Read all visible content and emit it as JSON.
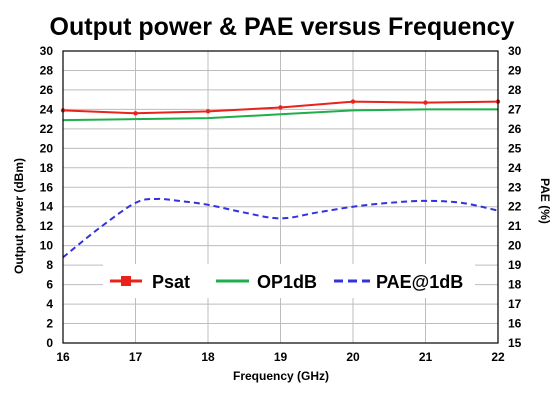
{
  "chart_data": {
    "type": "line",
    "title": "Output power & PAE versus Frequency",
    "xlabel": "Frequency (GHz)",
    "ylabel": "Output power  (dBm)",
    "y2label": "PAE (%)",
    "xlim": [
      16,
      22
    ],
    "ylim": [
      0,
      30
    ],
    "y2lim": [
      15,
      30
    ],
    "x_ticks": [
      16,
      17,
      18,
      19,
      20,
      21,
      22
    ],
    "y_ticks": [
      0,
      2,
      4,
      6,
      8,
      10,
      12,
      14,
      16,
      18,
      20,
      22,
      24,
      26,
      28,
      30
    ],
    "y2_ticks": [
      15,
      16,
      17,
      18,
      19,
      20,
      21,
      22,
      23,
      24,
      25,
      26,
      27,
      28,
      29,
      30
    ],
    "grid": true,
    "legend_position": "lower-center",
    "series": [
      {
        "name": "Psat",
        "axis": "left",
        "color": "#e8231c",
        "style": "solid-marker",
        "x": [
          16,
          17,
          18,
          19,
          20,
          21,
          22
        ],
        "y": [
          23.9,
          23.6,
          23.8,
          24.2,
          24.8,
          24.7,
          24.8
        ]
      },
      {
        "name": "OP1dB",
        "axis": "left",
        "color": "#1fae4b",
        "style": "solid",
        "x": [
          16,
          17,
          18,
          19,
          20,
          21,
          22
        ],
        "y": [
          22.9,
          23.0,
          23.1,
          23.5,
          23.9,
          24.0,
          24.0
        ]
      },
      {
        "name": "PAE@1dB",
        "axis": "right",
        "color": "#3333dd",
        "style": "dashed",
        "x": [
          16,
          16.5,
          17,
          17.3,
          17.6,
          18,
          18.5,
          19,
          19.5,
          20,
          20.5,
          21,
          21.5,
          22
        ],
        "y": [
          19.4,
          20.9,
          22.2,
          22.4,
          22.3,
          22.1,
          21.7,
          21.4,
          21.7,
          22.0,
          22.2,
          22.3,
          22.2,
          21.8
        ]
      }
    ]
  }
}
